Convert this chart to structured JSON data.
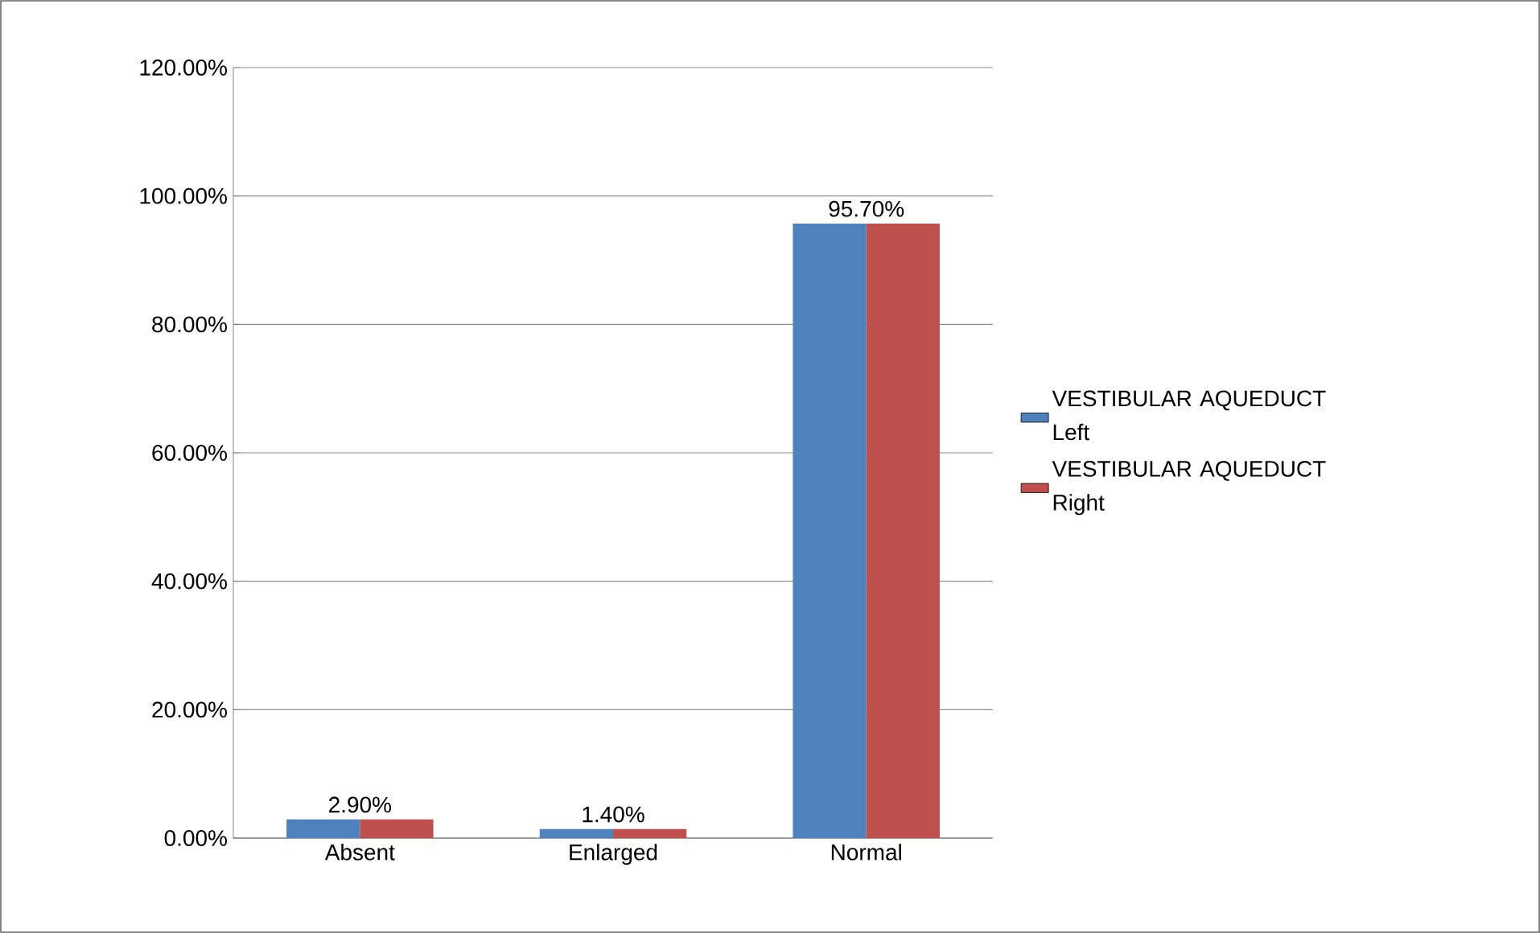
{
  "chart_data": {
    "type": "bar",
    "categories": [
      "Absent",
      "Enlarged",
      "Normal"
    ],
    "series": [
      {
        "name": "VESTIBULAR AQUEDUCT Left",
        "color": "#4f81bd",
        "values": [
          2.9,
          1.4,
          95.7
        ],
        "value_labels": [
          "2.90%",
          "1.40%",
          "95.70%"
        ]
      },
      {
        "name": "VESTIBULAR AQUEDUCT Right",
        "color": "#c0504d",
        "values": [
          2.9,
          1.4,
          95.7
        ]
      }
    ],
    "ylim": [
      0,
      120
    ],
    "yticks": [
      {
        "value": 0,
        "label": "0.00%"
      },
      {
        "value": 20,
        "label": "20.00%"
      },
      {
        "value": 40,
        "label": "40.00%"
      },
      {
        "value": 60,
        "label": "60.00%"
      },
      {
        "value": 80,
        "label": "80.00%"
      },
      {
        "value": 100,
        "label": "100.00%"
      },
      {
        "value": 120,
        "label": "120.00%"
      }
    ],
    "grid": "y",
    "legend": "right"
  }
}
